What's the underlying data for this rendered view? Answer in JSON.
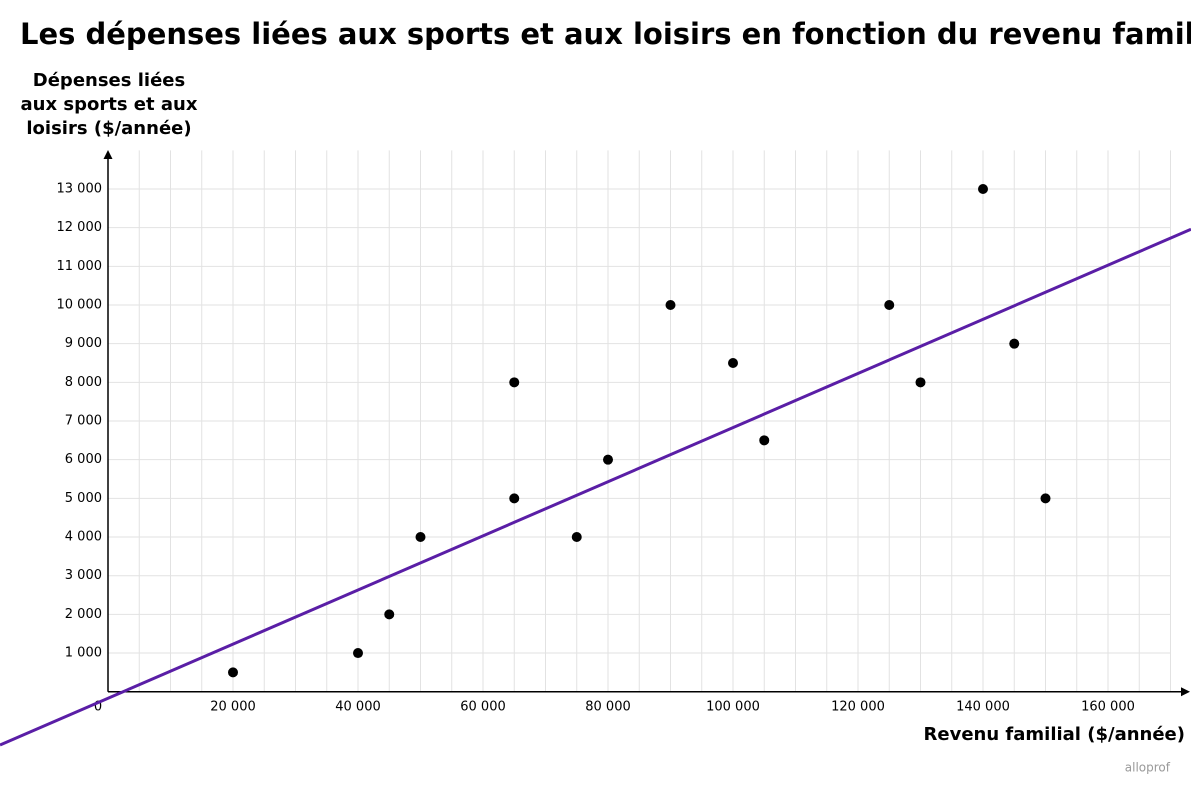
{
  "chart_data": {
    "type": "scatter",
    "title": "Les dépenses liées aux sports et aux loisirs en fonction du revenu familial",
    "y_label": [
      "Dépenses liées",
      "aux sports et aux",
      "loisirs ($/année)"
    ],
    "x_label": "Revenu familial ($/année)",
    "watermark": "alloprof",
    "x": [
      20000,
      40000,
      45000,
      50000,
      65000,
      65000,
      75000,
      80000,
      90000,
      100000,
      105000,
      125000,
      130000,
      140000,
      145000,
      150000
    ],
    "values": [
      500,
      1000,
      2000,
      4000,
      8000,
      5000,
      4000,
      6000,
      10000,
      8500,
      6500,
      10000,
      8000,
      13000,
      9000,
      5000
    ],
    "color": "#000000",
    "trend_line": {
      "slope": 0.07,
      "intercept": -170,
      "color": "#5a1ea6"
    },
    "xlim": [
      0,
      172000
    ],
    "ylim": [
      0,
      14000
    ],
    "xticks": [
      0,
      {
        "value": 20000,
        "label": "20 000"
      },
      {
        "value": 40000,
        "label": "40 000"
      },
      {
        "value": 60000,
        "label": "60 000"
      },
      {
        "value": 80000,
        "label": "80 000"
      },
      {
        "value": 100000,
        "label": "100 000"
      },
      {
        "value": 120000,
        "label": "120 000"
      },
      {
        "value": 140000,
        "label": "140 000"
      },
      {
        "value": 160000,
        "label": "160 000"
      }
    ],
    "yticks": [
      {
        "value": 1000,
        "label": "1 000"
      },
      {
        "value": 2000,
        "label": "2 000"
      },
      {
        "value": 3000,
        "label": "3 000"
      },
      {
        "value": 4000,
        "label": "4 000"
      },
      {
        "value": 5000,
        "label": "5 000"
      },
      {
        "value": 6000,
        "label": "6 000"
      },
      {
        "value": 7000,
        "label": "7 000"
      },
      {
        "value": 8000,
        "label": "8 000"
      },
      {
        "value": 9000,
        "label": "9 000"
      },
      {
        "value": 10000,
        "label": "10 000"
      },
      {
        "value": 11000,
        "label": "11 000"
      },
      {
        "value": 12000,
        "label": "12 000"
      },
      {
        "value": 13000,
        "label": "13 000"
      }
    ],
    "grid": true
  }
}
